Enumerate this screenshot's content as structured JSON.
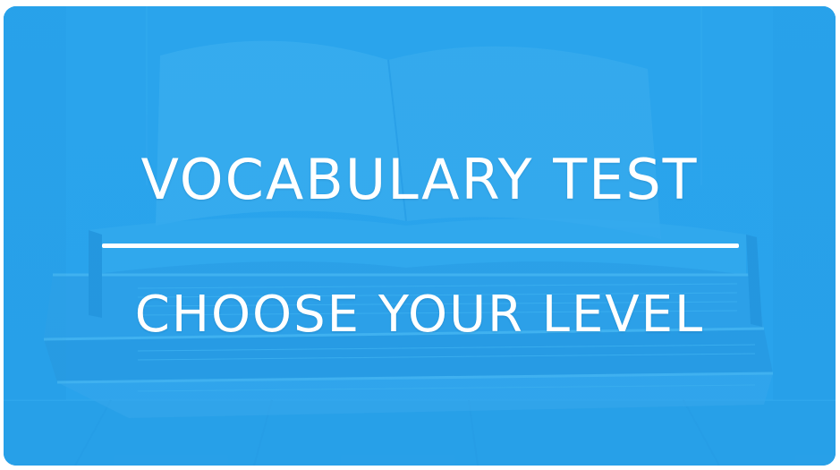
{
  "banner": {
    "title": "VOCABULARY TEST",
    "subtitle": "CHOOSE YOUR LEVEL",
    "accent_color": "#2aa5ec",
    "text_color": "#ffffff",
    "background_icon": "open-books-photo"
  }
}
